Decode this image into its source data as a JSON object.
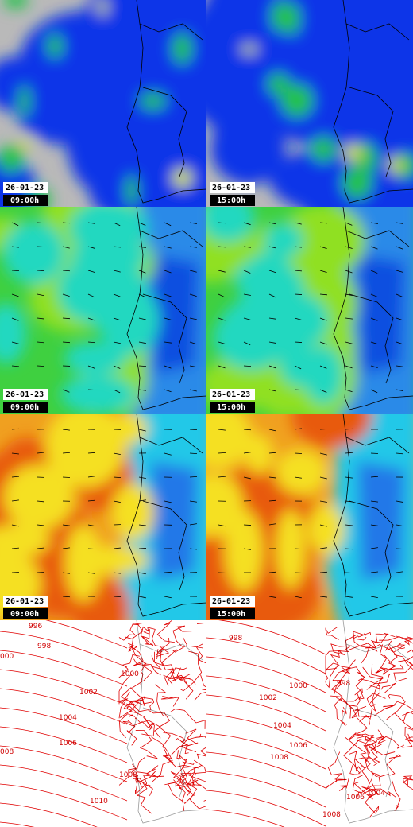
{
  "panels": [
    {
      "date": "26-01-23",
      "time": "09:00h"
    },
    {
      "date": "26-01-23",
      "time": "15:00h"
    },
    {
      "date": "26-01-23",
      "time": "09:00h"
    },
    {
      "date": "26-01-23",
      "time": "15:00h"
    },
    {
      "date": "26-01-23",
      "time": "09:00h"
    },
    {
      "date": "26-01-23",
      "time": "15:00h"
    }
  ],
  "isobars": {
    "left": [
      "996",
      "998",
      "000",
      "1000",
      "1002",
      "1004",
      "1006",
      "008",
      "1008",
      "1010"
    ],
    "right": [
      "998",
      "998",
      "1000",
      "1002",
      "1004",
      "1006",
      "1008",
      "1006",
      "1004",
      "1008"
    ]
  }
}
